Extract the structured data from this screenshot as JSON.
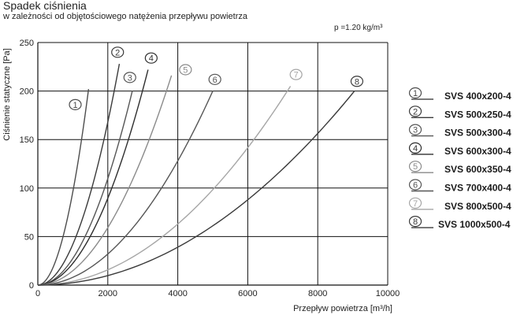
{
  "chart_data": {
    "type": "line",
    "title": "Spadek ciśnienia",
    "subtitle": "w zależności od objętościowego natężenia przepływu powietrza",
    "density_note": "p =1.20 kg/m³",
    "xlabel": "Przepływ powietrza [m³/h]",
    "ylabel": "Ciśnienie statyczne [Pa]",
    "xlim": [
      0,
      10000
    ],
    "ylim": [
      0,
      250
    ],
    "xticks": [
      "0",
      "2000",
      "4000",
      "6000",
      "8000",
      "10000"
    ],
    "yticks": [
      "0",
      "50",
      "100",
      "150",
      "200",
      "250"
    ],
    "grid": true,
    "legend_position": "right",
    "series": [
      {
        "marker": "1",
        "name": "SVS 400x200-4",
        "color": "#4d4d4d",
        "end": [
          1450,
          202
        ],
        "label_at": [
          1070,
          186
        ]
      },
      {
        "marker": "2",
        "name": "SVS 500x250-4",
        "color": "#3a3a3a",
        "end": [
          2330,
          228
        ],
        "label_at": [
          2280,
          240
        ]
      },
      {
        "marker": "3",
        "name": "SVS 500x300-4",
        "color": "#555555",
        "end": [
          2700,
          200
        ],
        "label_at": [
          2630,
          214
        ]
      },
      {
        "marker": "4",
        "name": "SVS 600x300-4",
        "color": "#2e2e2e",
        "end": [
          3150,
          222
        ],
        "label_at": [
          3240,
          234
        ]
      },
      {
        "marker": "5",
        "name": "SVS 600x350-4",
        "color": "#8a8a8a",
        "end": [
          3820,
          216
        ],
        "label_at": [
          4220,
          222
        ]
      },
      {
        "marker": "6",
        "name": "SVS 700x400-4",
        "color": "#555555",
        "end": [
          5000,
          200
        ],
        "label_at": [
          5060,
          212
        ]
      },
      {
        "marker": "7",
        "name": "SVS 800x500-4",
        "color": "#a6a6a6",
        "end": [
          7220,
          205
        ],
        "label_at": [
          7380,
          217
        ]
      },
      {
        "marker": "8",
        "name": "SVS 1000x500-4",
        "color": "#3a3a3a",
        "end": [
          9050,
          200
        ],
        "label_at": [
          9120,
          210
        ]
      }
    ]
  }
}
